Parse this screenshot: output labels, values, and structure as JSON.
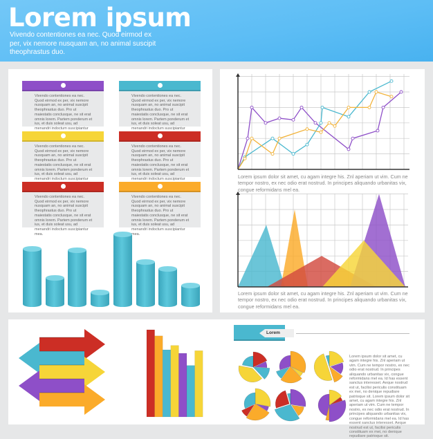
{
  "header": {
    "title": "Lorem ipsum",
    "subtitle": "Vivendo contentiones ea nec. Quod eirmod ex per, vix nemore nusquam an, no animal suscipit theophrastus duo."
  },
  "cards": [
    {
      "color": "#8e4fc8",
      "text": "Vivendo contentiones ea nec. Quod eirmod ex per, vix nemore nusquam an, no animal suscipit theophrastus duo. Pro ut maiestatis conclusque, ne sit erat omnis lorem. Partem ponderum et ius, et duis soleat usu, ad menandri indoctum suscipiantur mea."
    },
    {
      "color": "#4ab8cf",
      "text": "Vivendo contentiones ea nec. Quod eirmod ex per, vix nemore nusquam an, no animal suscipit theophrastus duo. Pro ut maiestatis conclusque, ne sit erat omnis lorem. Partem ponderum et ius, et duis soleat usu, ad menandri indoctum suscipiantur mea."
    },
    {
      "color": "#f6d538",
      "text": "Vivendo contentiones ea nec. Quod eirmod ex per, vix nemore nusquam an, no animal suscipit theophrastus duo. Pro ut maiestatis conclusque, ne sit erat omnis lorem. Partem ponderum et ius, et duis soleat usu, ad menandri indoctum suscipiantur mea."
    },
    {
      "color": "#cc2e25",
      "text": "Vivendo contentiones ea nec. Quod eirmod ex per, vix nemore nusquam an, no animal suscipit theophrastus duo. Pro ut maiestatis conclusque, ne sit erat omnis lorem. Partem ponderum et ius, et duis soleat usu, ad menandri indoctum suscipiantur mea."
    },
    {
      "color": "#cc2e25",
      "text": "Vivendo contentiones ea nec. Quod eirmod ex per, vix nemore nusquam an, no animal suscipit theophrastus duo. Pro ut maiestatis conclusque, ne sit erat omnis lorem. Partem ponderum et ius, et duis soleat usu, ad menandri indoctum suscipiantur mea."
    },
    {
      "color": "#fbab2a",
      "text": "Vivendo contentiones ea nec. Quod eirmod ex per, vix nemore nusquam an, no animal suscipit theophrastus duo. Pro ut maiestatis conclusque, ne sit erat omnis lorem. Partem ponderum et ius, et duis soleat usu, ad menandri indoctum suscipiantur mea."
    }
  ],
  "captions": {
    "line": "Lorem ipsum dolor sit amet, cu agam integre his. Znl aperiam ut vim. Cum ne tempor nostro, ex nec odio erat nostrud. In principes aliquando urbanitas vix, congue reformidans mel ea.",
    "area": "Lorem ipsum dolor sit amet, cu agam integre his. Znl aperiam ut vim. Cum ne tempor nostro, ex nec odio erat nostrud. In principes aliquando urbanitas vix, congue reformidans mel ea."
  },
  "section": {
    "tag": "Lorem ipsum",
    "body": "Lorem ipsum dolor sit amet, cu agam integre his. Znl aperiam ut vim. Cum ne tempor nostro, ex nec odio erat nostrud. In principes aliquando urbanitas vix, congue reformidans mel ea. Id has essent sanctus interesset. Aeque nostrud est ut, facilisi periculis constituam ex mei, no denique repudiare patrioque sit. Lorem ipsum dolor sit amet, cu agam integre his. Znl aperiam ut vim. Cum ne tempor nostro, ex nec odio erat nostrud. In principes aliquando urbanitas vix, congue reformidans mel ea. Id has essent sanctus interesset. Aeque nostrud est ut, facilisi periculis constituam ex mei, no denique repudiare patrioque sit."
  },
  "chart_data": [
    {
      "type": "bar",
      "style": "cylinder",
      "color": "#4ab8cf",
      "values": [
        4,
        2,
        3.9,
        1,
        5,
        3.1,
        2.6,
        1.5
      ]
    },
    {
      "type": "line",
      "grid": true,
      "xlim": [
        0,
        12
      ],
      "ylim": [
        0,
        6
      ],
      "series": [
        {
          "color": "#8e4fc8",
          "points": [
            [
              0,
              0
            ],
            [
              0.7,
              2
            ],
            [
              1,
              4
            ],
            [
              2,
              3
            ],
            [
              3,
              3.3
            ],
            [
              4,
              3.2
            ],
            [
              4.6,
              4
            ],
            [
              5.6,
              3
            ],
            [
              8,
              1.3
            ],
            [
              8.3,
              2
            ],
            [
              10.1,
              2.5
            ],
            [
              10.5,
              4
            ],
            [
              11.8,
              5
            ]
          ]
        },
        {
          "color": "#4ab8cf",
          "points": [
            [
              0,
              0
            ],
            [
              0.5,
              0.8
            ],
            [
              2.5,
              2
            ],
            [
              4,
              1
            ],
            [
              5,
              1.6
            ],
            [
              6,
              3
            ],
            [
              6.1,
              4
            ],
            [
              8,
              3.4
            ],
            [
              9.5,
              5
            ],
            [
              11.1,
              5.7
            ]
          ]
        },
        {
          "color": "#f2b33a",
          "points": [
            [
              0,
              0
            ],
            [
              0.5,
              0.7
            ],
            [
              1,
              2
            ],
            [
              2.5,
              1
            ],
            [
              3,
              2
            ],
            [
              5,
              2.6
            ],
            [
              6,
              2.4
            ],
            [
              6.6,
              3
            ],
            [
              7,
              2.8
            ],
            [
              8,
              4
            ],
            [
              9.5,
              4
            ],
            [
              10,
              5
            ],
            [
              11.1,
              4.7
            ]
          ]
        }
      ]
    },
    {
      "type": "area",
      "grid": true,
      "xlim": [
        0,
        12
      ],
      "ylim": [
        0,
        6
      ],
      "series": [
        {
          "color": "#4ab8cf",
          "points": [
            [
              0,
              0
            ],
            [
              2.05,
              4
            ],
            [
              3.4,
              0
            ]
          ]
        },
        {
          "color": "#fbab2a",
          "points": [
            [
              3.1,
              0
            ],
            [
              4.1,
              5
            ],
            [
              5.05,
              0
            ]
          ]
        },
        {
          "color": "#d24a3f",
          "points": [
            [
              2.1,
              0
            ],
            [
              6.05,
              2
            ],
            [
              10,
              0
            ]
          ]
        },
        {
          "color": "#8e4fc8",
          "points": [
            [
              8.1,
              0
            ],
            [
              10.2,
              6
            ],
            [
              12.1,
              0
            ]
          ]
        },
        {
          "color": "#f6d538",
          "points": [
            [
              6.1,
              0
            ],
            [
              9.1,
              3
            ],
            [
              12.1,
              0
            ]
          ]
        }
      ]
    },
    {
      "type": "bar",
      "colors": [
        "#cc2e25",
        "#fbab2a",
        "#4ab8cf",
        "#f6d538",
        "#8e4fc8",
        "#4ab8cf",
        "#f6d538"
      ],
      "values": [
        10,
        9.3,
        7.7,
        8.2,
        7.3,
        5.9,
        7.6
      ]
    },
    {
      "type": "pie",
      "pies": [
        {
          "values": [
            18,
            8,
            12,
            40,
            22
          ],
          "colors": [
            "#cc2e25",
            "#8e4fc8",
            "#4ab8cf",
            "#f6d538",
            "#4ab8cf"
          ]
        },
        {
          "values": [
            32,
            6,
            22,
            10,
            30
          ],
          "colors": [
            "#fbab2a",
            "#f6d538",
            "#fbab2a",
            "#4ab8cf",
            "#8e4fc8"
          ]
        },
        {
          "values": [
            20,
            15,
            10,
            50,
            5
          ],
          "colors": [
            "#f6d538",
            "#8e4fc8",
            "#fbab2a",
            "#f6d538",
            "#4ab8cf"
          ]
        },
        {
          "values": [
            28,
            6,
            25,
            9,
            32
          ],
          "colors": [
            "#f6d538",
            "#8e4fc8",
            "#fbab2a",
            "#cc2e25",
            "#4ab8cf"
          ]
        },
        {
          "values": [
            30,
            15,
            32,
            28,
            5
          ],
          "colors": [
            "#8e4fc8",
            "#fbab2a",
            "#4ab8cf",
            "#cc2e25",
            "#4ab8cf"
          ]
        },
        {
          "values": [
            15,
            5,
            30,
            4,
            46
          ],
          "colors": [
            "#f6d538",
            "#cc2e25",
            "#8e4fc8",
            "#fbab2a",
            "#8e4fc8"
          ]
        }
      ]
    }
  ],
  "arrows": [
    {
      "color": "#cc2e25",
      "direction": "right"
    },
    {
      "color": "#4ab8cf",
      "direction": "left"
    },
    {
      "color": "#f6d538",
      "direction": "right"
    },
    {
      "color": "#8e4fc8",
      "direction": "left"
    },
    {
      "color": "#fbab2a",
      "direction": "right"
    }
  ]
}
